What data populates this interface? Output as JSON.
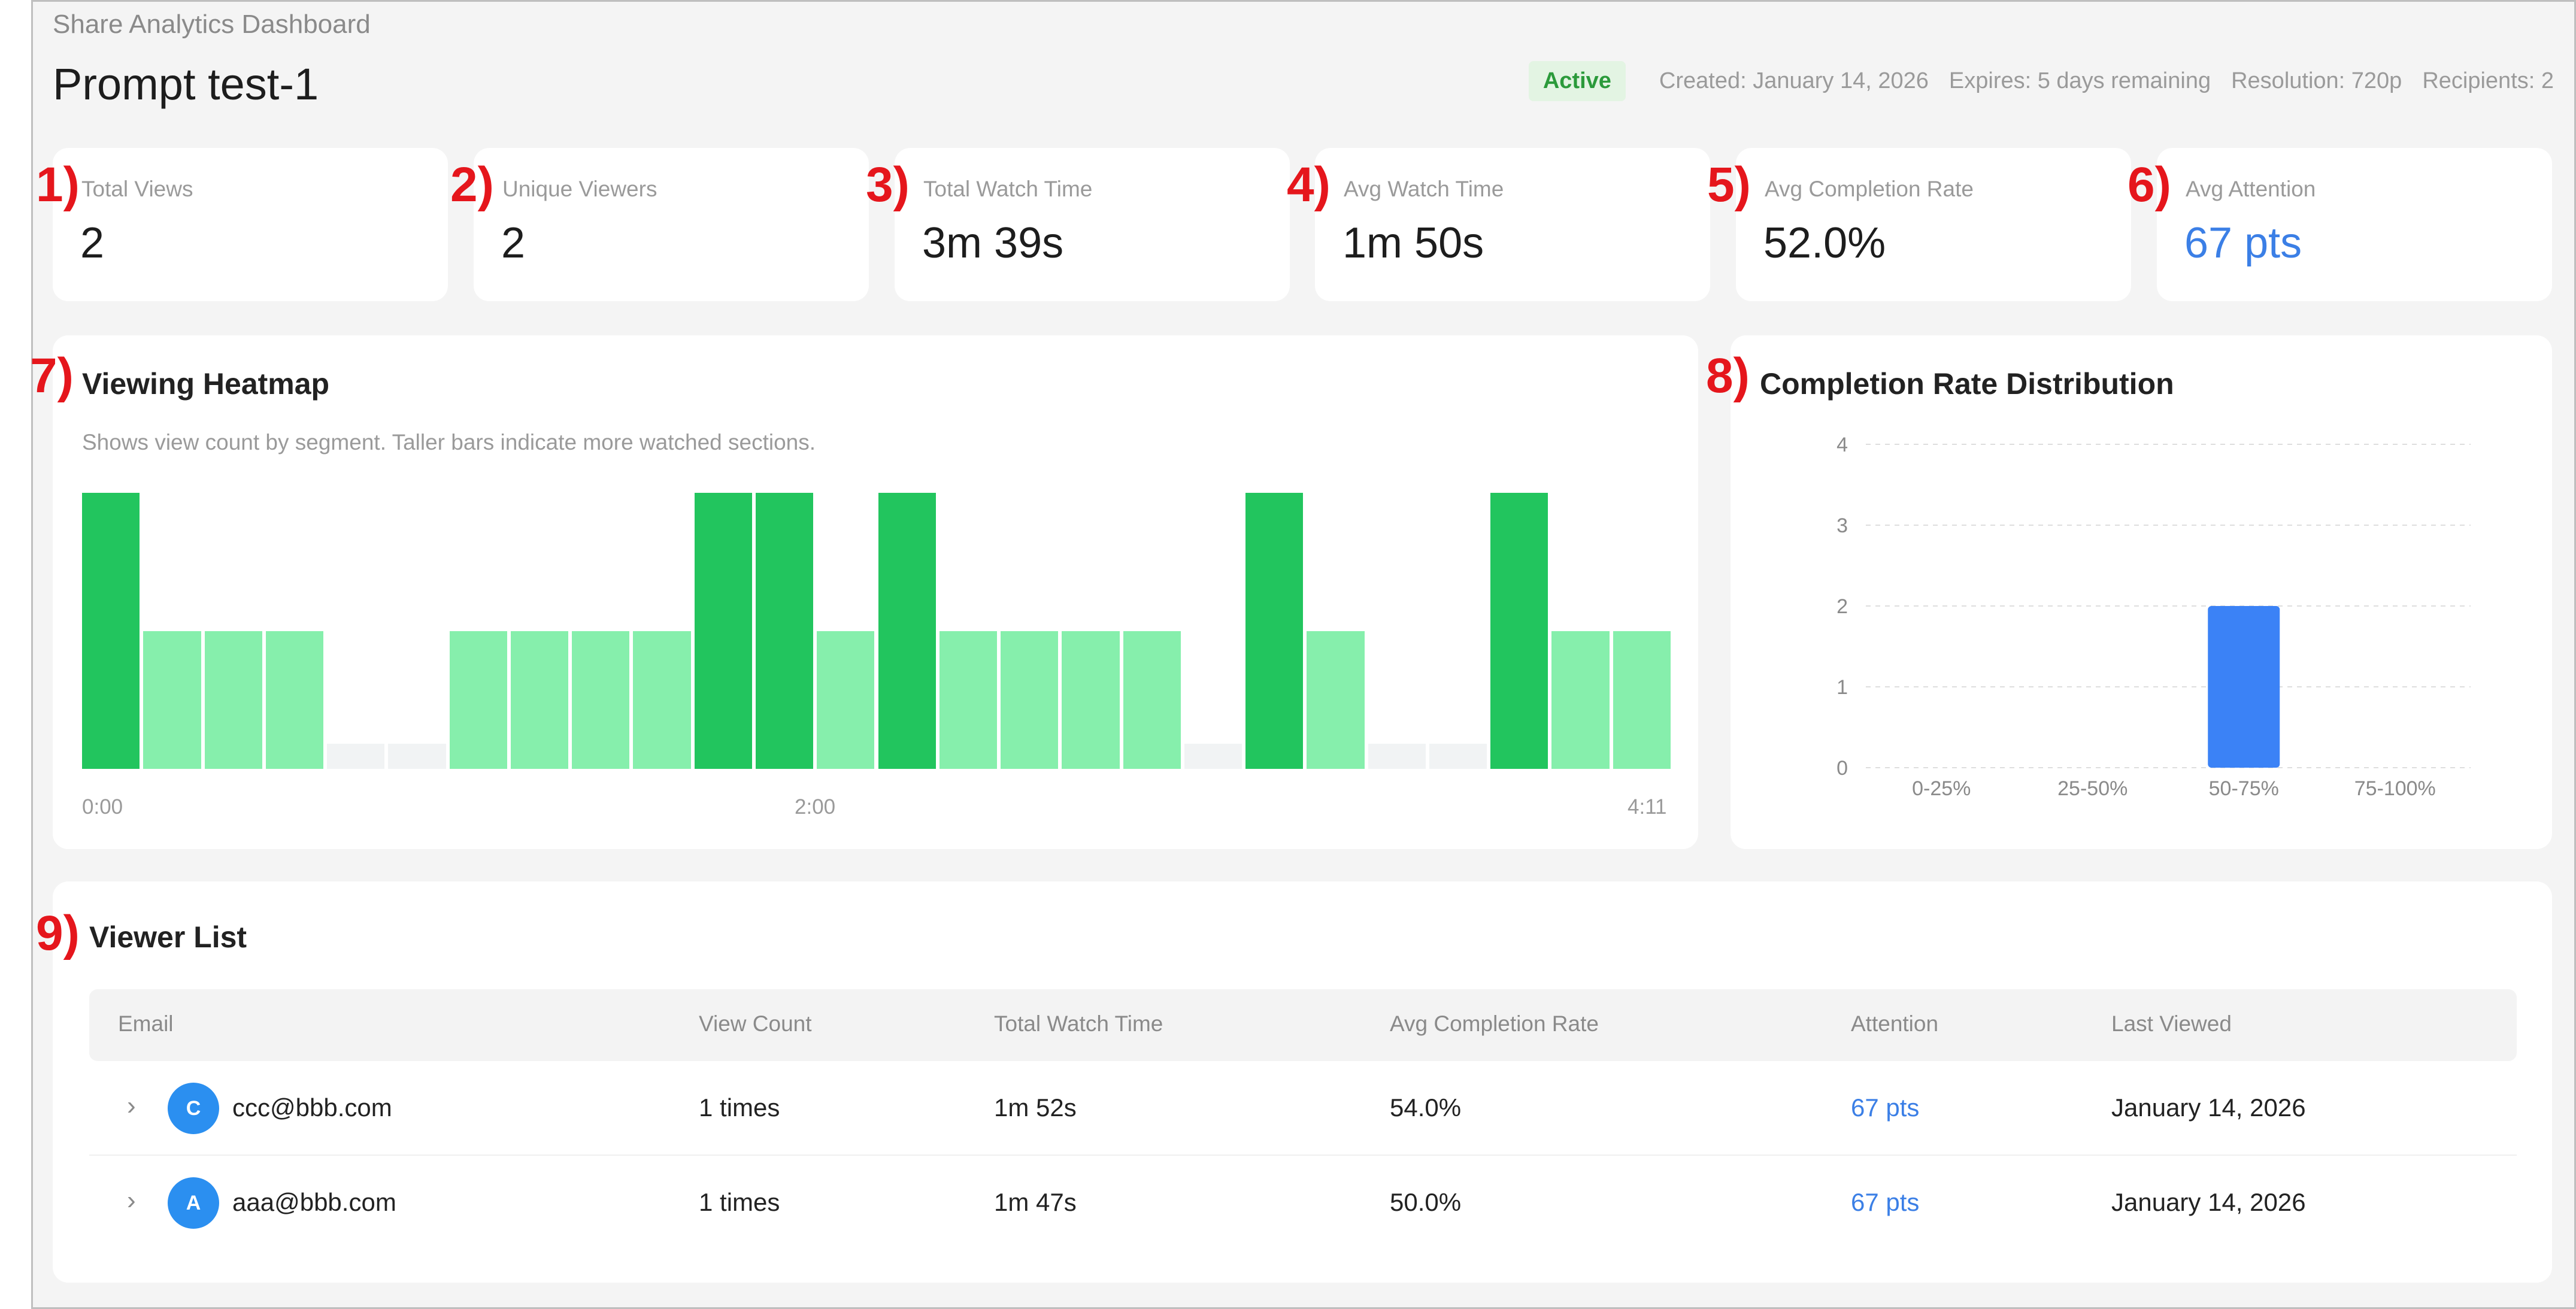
{
  "app": {
    "label": "Share Analytics Dashboard",
    "title": "Prompt test-1"
  },
  "meta": {
    "status": "Active",
    "created": "Created: January 14, 2026",
    "expires": "Expires: 5 days remaining",
    "resolution": "Resolution: 720p",
    "recipients": "Recipients: 2",
    "status_color": "#2b9a3b"
  },
  "markers": [
    "1)",
    "2)",
    "3)",
    "4)",
    "5)",
    "6)",
    "7)",
    "8)",
    "9)"
  ],
  "stats": [
    {
      "label": "Total Views",
      "value": "2"
    },
    {
      "label": "Unique Viewers",
      "value": "2"
    },
    {
      "label": "Total Watch Time",
      "value": "3m 39s"
    },
    {
      "label": "Avg Watch Time",
      "value": "1m 50s"
    },
    {
      "label": "Avg Completion Rate",
      "value": "52.0%"
    },
    {
      "label": "Avg Attention",
      "value": "67 pts"
    }
  ],
  "heatmap": {
    "title": "Viewing Heatmap",
    "subtitle": "Shows view count by segment. Taller bars indicate more watched sections.",
    "x_labels": [
      "0:00",
      "2:00",
      "4:11"
    ],
    "segments": [
      2,
      1,
      1,
      1,
      0,
      0,
      1,
      1,
      1,
      1,
      2,
      2,
      1,
      2,
      1,
      1,
      1,
      1,
      0,
      2,
      1,
      0,
      0,
      2,
      1,
      1
    ],
    "max": 2,
    "colors": {
      "high": "#22c55e",
      "low": "#86efac",
      "empty": "#f1f3f4"
    }
  },
  "chart_data": {
    "type": "bar",
    "title": "Completion Rate Distribution",
    "categories": [
      "0-25%",
      "25-50%",
      "50-75%",
      "75-100%"
    ],
    "values": [
      0,
      0,
      2,
      0
    ],
    "yticks": [
      0,
      1,
      2,
      3,
      4
    ],
    "ylim": [
      0,
      4
    ],
    "grid": true,
    "color": "#3b82f6"
  },
  "viewers": {
    "title": "Viewer List",
    "columns": [
      "Email",
      "View Count",
      "Total Watch Time",
      "Avg Completion Rate",
      "Attention",
      "Last Viewed"
    ],
    "rows": [
      {
        "initial": "C",
        "email": "ccc@bbb.com",
        "views": "1 times",
        "watch": "1m 52s",
        "completion": "54.0%",
        "attention": "67 pts",
        "last": "January 14, 2026"
      },
      {
        "initial": "A",
        "email": "aaa@bbb.com",
        "views": "1 times",
        "watch": "1m 47s",
        "completion": "50.0%",
        "attention": "67 pts",
        "last": "January 14, 2026"
      }
    ],
    "chevron": "›"
  }
}
